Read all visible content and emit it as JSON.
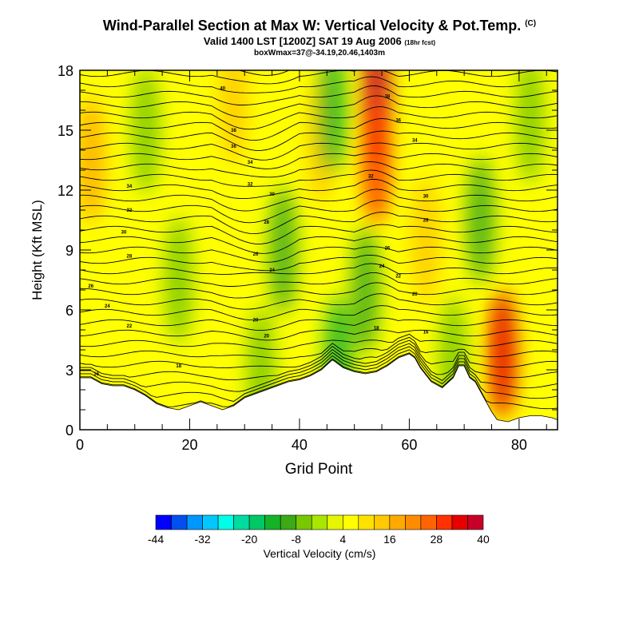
{
  "header": {
    "title": "Wind-Parallel Section at Max W: Vertical Velocity & Pot.Temp.",
    "copyright_mark": "(C)",
    "subtitle": "Valid 1400 LST [1200Z] SAT 19 Aug 2006",
    "forecast_note": "(18hr fcst)",
    "subtitle2": "boxWmax=37@-34.19,20.46,1403m"
  },
  "chart_data": {
    "type": "heatmap",
    "title": "Wind-Parallel Section at Max W: Vertical Velocity & Pot.Temp.",
    "xlabel": "Grid Point",
    "ylabel": "Height (Kft MSL)",
    "xlim": [
      0,
      87
    ],
    "ylim": [
      0,
      18
    ],
    "x_ticks": [
      0,
      20,
      40,
      60,
      80
    ],
    "y_ticks": [
      0,
      3,
      6,
      9,
      12,
      15,
      18
    ],
    "colorbar": {
      "label": "Vertical Velocity (cm/s)",
      "ticks": [
        -44,
        -32,
        -20,
        -8,
        4,
        16,
        28,
        40
      ],
      "bounds": [
        -44,
        40
      ],
      "step": 4,
      "colors": [
        "#0000ff",
        "#0050f0",
        "#0096ff",
        "#00c8ff",
        "#00ffe6",
        "#00dca0",
        "#00c864",
        "#14b428",
        "#3caa14",
        "#78c800",
        "#aae600",
        "#e6f500",
        "#ffff00",
        "#ffe100",
        "#ffc800",
        "#ffaa00",
        "#ff8c00",
        "#ff6400",
        "#ff3200",
        "#e60000",
        "#c80028"
      ]
    },
    "terrain": [
      [
        0,
        2.6
      ],
      [
        2,
        2.6
      ],
      [
        4,
        2.3
      ],
      [
        6,
        2.2
      ],
      [
        8,
        2.2
      ],
      [
        10,
        2.0
      ],
      [
        12,
        1.7
      ],
      [
        14,
        1.3
      ],
      [
        16,
        1.1
      ],
      [
        18,
        1.0
      ],
      [
        20,
        1.2
      ],
      [
        22,
        1.4
      ],
      [
        24,
        1.2
      ],
      [
        26,
        1.0
      ],
      [
        28,
        1.2
      ],
      [
        30,
        1.6
      ],
      [
        32,
        1.8
      ],
      [
        34,
        2.0
      ],
      [
        36,
        2.2
      ],
      [
        38,
        2.4
      ],
      [
        40,
        2.5
      ],
      [
        42,
        2.7
      ],
      [
        44,
        3.0
      ],
      [
        46,
        3.5
      ],
      [
        48,
        3.1
      ],
      [
        50,
        2.9
      ],
      [
        52,
        2.8
      ],
      [
        54,
        2.9
      ],
      [
        56,
        3.2
      ],
      [
        58,
        3.6
      ],
      [
        60,
        3.8
      ],
      [
        61,
        3.6
      ],
      [
        62,
        3.1
      ],
      [
        64,
        2.4
      ],
      [
        66,
        2.1
      ],
      [
        68,
        2.6
      ],
      [
        69,
        3.2
      ],
      [
        70,
        3.2
      ],
      [
        71,
        2.6
      ],
      [
        72,
        2.4
      ],
      [
        74,
        1.4
      ],
      [
        75,
        0.9
      ],
      [
        76,
        0.5
      ],
      [
        78,
        0.4
      ],
      [
        80,
        0.6
      ],
      [
        82,
        0.7
      ],
      [
        84,
        0.7
      ],
      [
        86,
        0.6
      ],
      [
        87,
        0.5
      ]
    ],
    "w_features": [
      {
        "x": 54,
        "y": 16.5,
        "w": 38
      },
      {
        "x": 54,
        "y": 13.5,
        "w": 30
      },
      {
        "x": 77,
        "y": 3.8,
        "w": 32
      },
      {
        "x": 2,
        "y": 13.5,
        "w": 16
      },
      {
        "x": 28,
        "y": 16.5,
        "w": 14
      },
      {
        "x": 44,
        "y": 14.5,
        "w": 12
      },
      {
        "x": 63,
        "y": 9.5,
        "w": 12
      },
      {
        "x": 46,
        "y": 16.0,
        "w": -14
      },
      {
        "x": 52,
        "y": 7.0,
        "w": -12
      },
      {
        "x": 47,
        "y": 3.5,
        "w": -16
      },
      {
        "x": 37,
        "y": 9.0,
        "w": -10
      },
      {
        "x": 73,
        "y": 10.5,
        "w": -10
      },
      {
        "x": 82,
        "y": 15.5,
        "w": -8
      },
      {
        "x": 18,
        "y": 7.5,
        "w": -6
      },
      {
        "x": 12,
        "y": 15.0,
        "w": -8
      },
      {
        "x": 68,
        "y": 3.5,
        "w": -6
      },
      {
        "x": 33,
        "y": 3.0,
        "w": -8
      }
    ],
    "contour_labels": [
      {
        "x": 26,
        "y": 17.1,
        "text": "40"
      },
      {
        "x": 28,
        "y": 15.0,
        "text": "38"
      },
      {
        "x": 28,
        "y": 14.2,
        "text": "36"
      },
      {
        "x": 31,
        "y": 13.4,
        "text": "34"
      },
      {
        "x": 31,
        "y": 12.3,
        "text": "32"
      },
      {
        "x": 35,
        "y": 11.8,
        "text": "30"
      },
      {
        "x": 34,
        "y": 10.4,
        "text": "28"
      },
      {
        "x": 32,
        "y": 8.8,
        "text": "26"
      },
      {
        "x": 35,
        "y": 8.0,
        "text": "24"
      },
      {
        "x": 32,
        "y": 5.5,
        "text": "20"
      },
      {
        "x": 34,
        "y": 4.7,
        "text": "20"
      },
      {
        "x": 9,
        "y": 12.2,
        "text": "34"
      },
      {
        "x": 9,
        "y": 11.0,
        "text": "32"
      },
      {
        "x": 8,
        "y": 9.9,
        "text": "30"
      },
      {
        "x": 9,
        "y": 8.7,
        "text": "28"
      },
      {
        "x": 2,
        "y": 7.2,
        "text": "26"
      },
      {
        "x": 5,
        "y": 6.2,
        "text": "24"
      },
      {
        "x": 9,
        "y": 5.2,
        "text": "22"
      },
      {
        "x": 18,
        "y": 3.2,
        "text": "18"
      },
      {
        "x": 3,
        "y": 2.8,
        "text": "16"
      },
      {
        "x": 56,
        "y": 16.7,
        "text": "38"
      },
      {
        "x": 58,
        "y": 15.5,
        "text": "36"
      },
      {
        "x": 61,
        "y": 14.5,
        "text": "34"
      },
      {
        "x": 53,
        "y": 12.7,
        "text": "32"
      },
      {
        "x": 63,
        "y": 11.7,
        "text": "30"
      },
      {
        "x": 63,
        "y": 10.5,
        "text": "28"
      },
      {
        "x": 56,
        "y": 9.1,
        "text": "26"
      },
      {
        "x": 55,
        "y": 8.2,
        "text": "24"
      },
      {
        "x": 58,
        "y": 7.7,
        "text": "22"
      },
      {
        "x": 61,
        "y": 6.8,
        "text": "20"
      },
      {
        "x": 54,
        "y": 5.1,
        "text": "18"
      },
      {
        "x": 63,
        "y": 4.9,
        "text": "16"
      }
    ]
  }
}
